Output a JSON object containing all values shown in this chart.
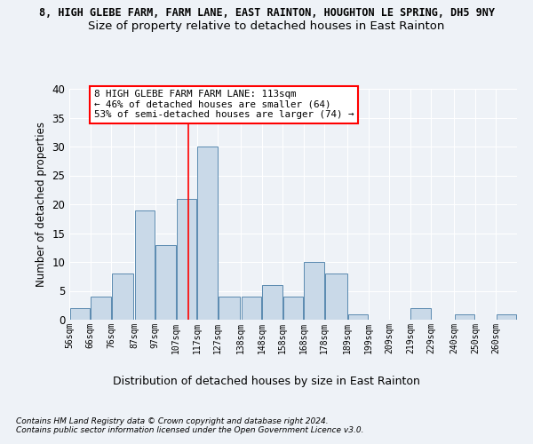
{
  "title_line1": "8, HIGH GLEBE FARM, FARM LANE, EAST RAINTON, HOUGHTON LE SPRING, DH5 9NY",
  "title_line2": "Size of property relative to detached houses in East Rainton",
  "xlabel": "Distribution of detached houses by size in East Rainton",
  "ylabel": "Number of detached properties",
  "bin_labels": [
    "56sqm",
    "66sqm",
    "76sqm",
    "87sqm",
    "97sqm",
    "107sqm",
    "117sqm",
    "127sqm",
    "138sqm",
    "148sqm",
    "158sqm",
    "168sqm",
    "178sqm",
    "189sqm",
    "199sqm",
    "209sqm",
    "219sqm",
    "229sqm",
    "240sqm",
    "250sqm",
    "260sqm"
  ],
  "bar_heights": [
    2,
    4,
    8,
    19,
    13,
    21,
    30,
    4,
    4,
    6,
    4,
    10,
    8,
    1,
    0,
    0,
    2,
    0,
    1,
    0,
    1
  ],
  "bar_color": "#c9d9e8",
  "bar_edge_color": "#5a8ab0",
  "red_line_x": 113,
  "bin_edges": [
    56,
    66,
    76,
    87,
    97,
    107,
    117,
    127,
    138,
    148,
    158,
    168,
    178,
    189,
    199,
    209,
    219,
    229,
    240,
    250,
    260,
    270
  ],
  "annotation_box_text": "8 HIGH GLEBE FARM FARM LANE: 113sqm\n← 46% of detached houses are smaller (64)\n53% of semi-detached houses are larger (74) →",
  "footnote1": "Contains HM Land Registry data © Crown copyright and database right 2024.",
  "footnote2": "Contains public sector information licensed under the Open Government Licence v3.0.",
  "ylim": [
    0,
    40
  ],
  "yticks": [
    0,
    5,
    10,
    15,
    20,
    25,
    30,
    35,
    40
  ],
  "bg_color": "#eef2f7",
  "grid_color": "#ffffff",
  "title_fontsize": 8.5,
  "subtitle_fontsize": 9.5
}
